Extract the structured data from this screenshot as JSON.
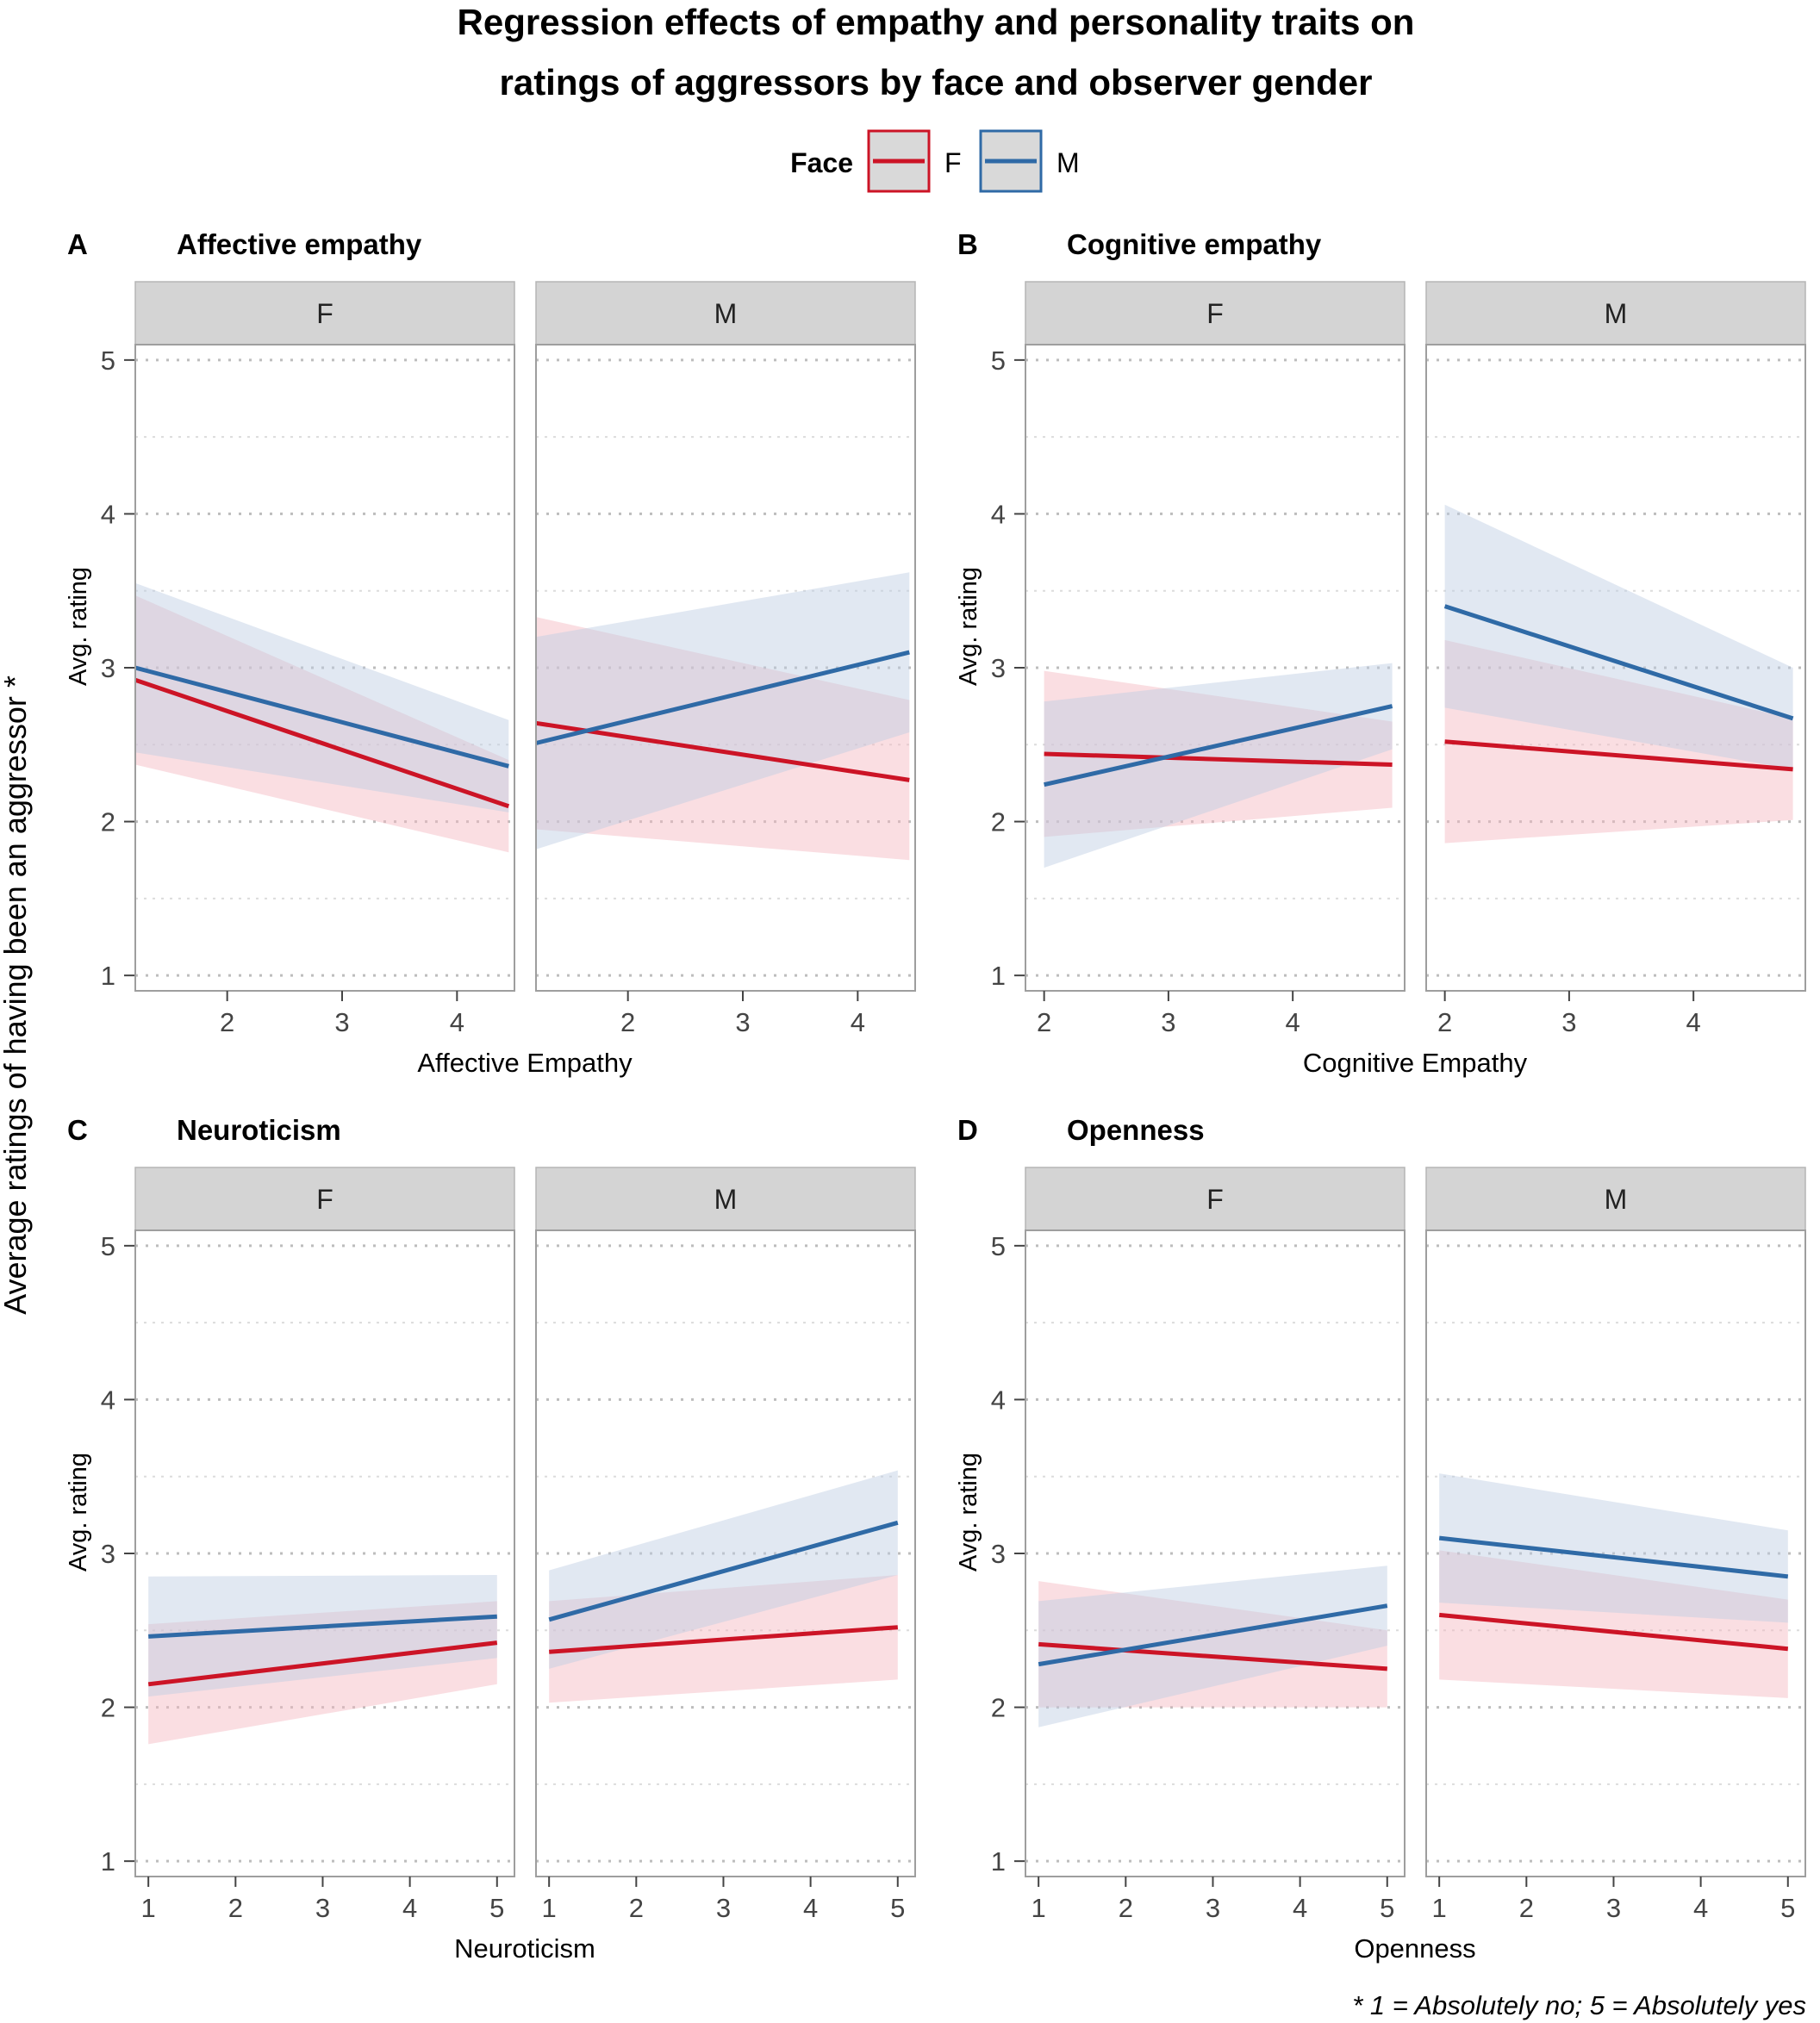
{
  "title_lines": [
    "Regression effects of empathy and personality traits on",
    "ratings of aggressors by face and observer gender"
  ],
  "legend": {
    "title": "Face",
    "items": [
      {
        "label": "F",
        "color": "#cc1426",
        "band": "#f4b6bf"
      },
      {
        "label": "M",
        "color": "#2f6aa6",
        "band": "#bccbe2"
      }
    ]
  },
  "global_ylabel": "Average ratings of having been an aggressor *",
  "footnote": "* 1 = Absolutely no; 5 = Absolutely yes",
  "chart_data": [
    {
      "type": "line",
      "letter": "A",
      "title": "Affective empathy",
      "xlabel": "Affective Empathy",
      "ylabel": "Avg. rating",
      "xlim": [
        1.2,
        4.5
      ],
      "xticks": [
        2,
        3,
        4
      ],
      "ylim": [
        0.9,
        5.1
      ],
      "yticks": [
        1,
        2,
        3,
        4,
        5
      ],
      "facets": [
        {
          "label": "F",
          "series": [
            {
              "name": "F",
              "x": [
                1.2,
                4.45
              ],
              "y": [
                2.92,
                2.1
              ],
              "lower": [
                2.37,
                1.8
              ],
              "upper": [
                3.47,
                2.4
              ]
            },
            {
              "name": "M",
              "x": [
                1.2,
                4.45
              ],
              "y": [
                3.0,
                2.36
              ],
              "lower": [
                2.45,
                2.06
              ],
              "upper": [
                3.55,
                2.66
              ]
            }
          ]
        },
        {
          "label": "M",
          "series": [
            {
              "name": "F",
              "x": [
                1.2,
                4.45
              ],
              "y": [
                2.64,
                2.27
              ],
              "lower": [
                1.95,
                1.75
              ],
              "upper": [
                3.33,
                2.79
              ]
            },
            {
              "name": "M",
              "x": [
                1.2,
                4.45
              ],
              "y": [
                2.51,
                3.1
              ],
              "lower": [
                1.82,
                2.58
              ],
              "upper": [
                3.2,
                3.62
              ]
            }
          ]
        }
      ]
    },
    {
      "type": "line",
      "letter": "B",
      "title": "Cognitive empathy",
      "xlabel": "Cognitive Empathy",
      "ylabel": "Avg. rating",
      "xlim": [
        1.85,
        4.9
      ],
      "xticks": [
        2,
        3,
        4
      ],
      "ylim": [
        0.9,
        5.1
      ],
      "yticks": [
        1,
        2,
        3,
        4,
        5
      ],
      "facets": [
        {
          "label": "F",
          "series": [
            {
              "name": "F",
              "x": [
                2.0,
                4.8
              ],
              "y": [
                2.44,
                2.37
              ],
              "lower": [
                1.9,
                2.09
              ],
              "upper": [
                2.98,
                2.65
              ]
            },
            {
              "name": "M",
              "x": [
                2.0,
                4.8
              ],
              "y": [
                2.24,
                2.75
              ],
              "lower": [
                1.7,
                2.47
              ],
              "upper": [
                2.78,
                3.03
              ]
            }
          ]
        },
        {
          "label": "M",
          "series": [
            {
              "name": "F",
              "x": [
                2.0,
                4.8
              ],
              "y": [
                2.52,
                2.34
              ],
              "lower": [
                1.86,
                2.01
              ],
              "upper": [
                3.18,
                2.67
              ]
            },
            {
              "name": "M",
              "x": [
                2.0,
                4.8
              ],
              "y": [
                3.4,
                2.67
              ],
              "lower": [
                2.74,
                2.34
              ],
              "upper": [
                4.06,
                3.0
              ]
            }
          ]
        }
      ]
    },
    {
      "type": "line",
      "letter": "C",
      "title": "Neuroticism",
      "xlabel": "Neuroticism",
      "ylabel": "Avg. rating",
      "xlim": [
        0.85,
        5.2
      ],
      "xticks": [
        1,
        2,
        3,
        4,
        5
      ],
      "ylim": [
        0.9,
        5.1
      ],
      "yticks": [
        1,
        2,
        3,
        4,
        5
      ],
      "facets": [
        {
          "label": "F",
          "series": [
            {
              "name": "F",
              "x": [
                1.0,
                5.0
              ],
              "y": [
                2.15,
                2.42
              ],
              "lower": [
                1.76,
                2.15
              ],
              "upper": [
                2.54,
                2.69
              ]
            },
            {
              "name": "M",
              "x": [
                1.0,
                5.0
              ],
              "y": [
                2.46,
                2.59
              ],
              "lower": [
                2.07,
                2.32
              ],
              "upper": [
                2.85,
                2.86
              ]
            }
          ]
        },
        {
          "label": "M",
          "series": [
            {
              "name": "F",
              "x": [
                1.0,
                5.0
              ],
              "y": [
                2.36,
                2.52
              ],
              "lower": [
                2.03,
                2.18
              ],
              "upper": [
                2.69,
                2.86
              ]
            },
            {
              "name": "M",
              "x": [
                1.0,
                5.0
              ],
              "y": [
                2.57,
                3.2
              ],
              "lower": [
                2.25,
                2.86
              ],
              "upper": [
                2.89,
                3.54
              ]
            }
          ]
        }
      ]
    },
    {
      "type": "line",
      "letter": "D",
      "title": "Openness",
      "xlabel": "Openness",
      "ylabel": "Avg. rating",
      "xlim": [
        0.85,
        5.2
      ],
      "xticks": [
        1,
        2,
        3,
        4,
        5
      ],
      "ylim": [
        0.9,
        5.1
      ],
      "yticks": [
        1,
        2,
        3,
        4,
        5
      ],
      "facets": [
        {
          "label": "F",
          "series": [
            {
              "name": "F",
              "x": [
                1.0,
                5.0
              ],
              "y": [
                2.41,
                2.25
              ],
              "lower": [
                2.0,
                2.0
              ],
              "upper": [
                2.82,
                2.5
              ]
            },
            {
              "name": "M",
              "x": [
                1.0,
                5.0
              ],
              "y": [
                2.28,
                2.66
              ],
              "lower": [
                1.87,
                2.4
              ],
              "upper": [
                2.69,
                2.92
              ]
            }
          ]
        },
        {
          "label": "M",
          "series": [
            {
              "name": "F",
              "x": [
                1.0,
                5.0
              ],
              "y": [
                2.6,
                2.38
              ],
              "lower": [
                2.18,
                2.06
              ],
              "upper": [
                3.02,
                2.7
              ]
            },
            {
              "name": "M",
              "x": [
                1.0,
                5.0
              ],
              "y": [
                3.1,
                2.85
              ],
              "lower": [
                2.68,
                2.55
              ],
              "upper": [
                3.52,
                3.15
              ]
            }
          ]
        }
      ]
    }
  ]
}
